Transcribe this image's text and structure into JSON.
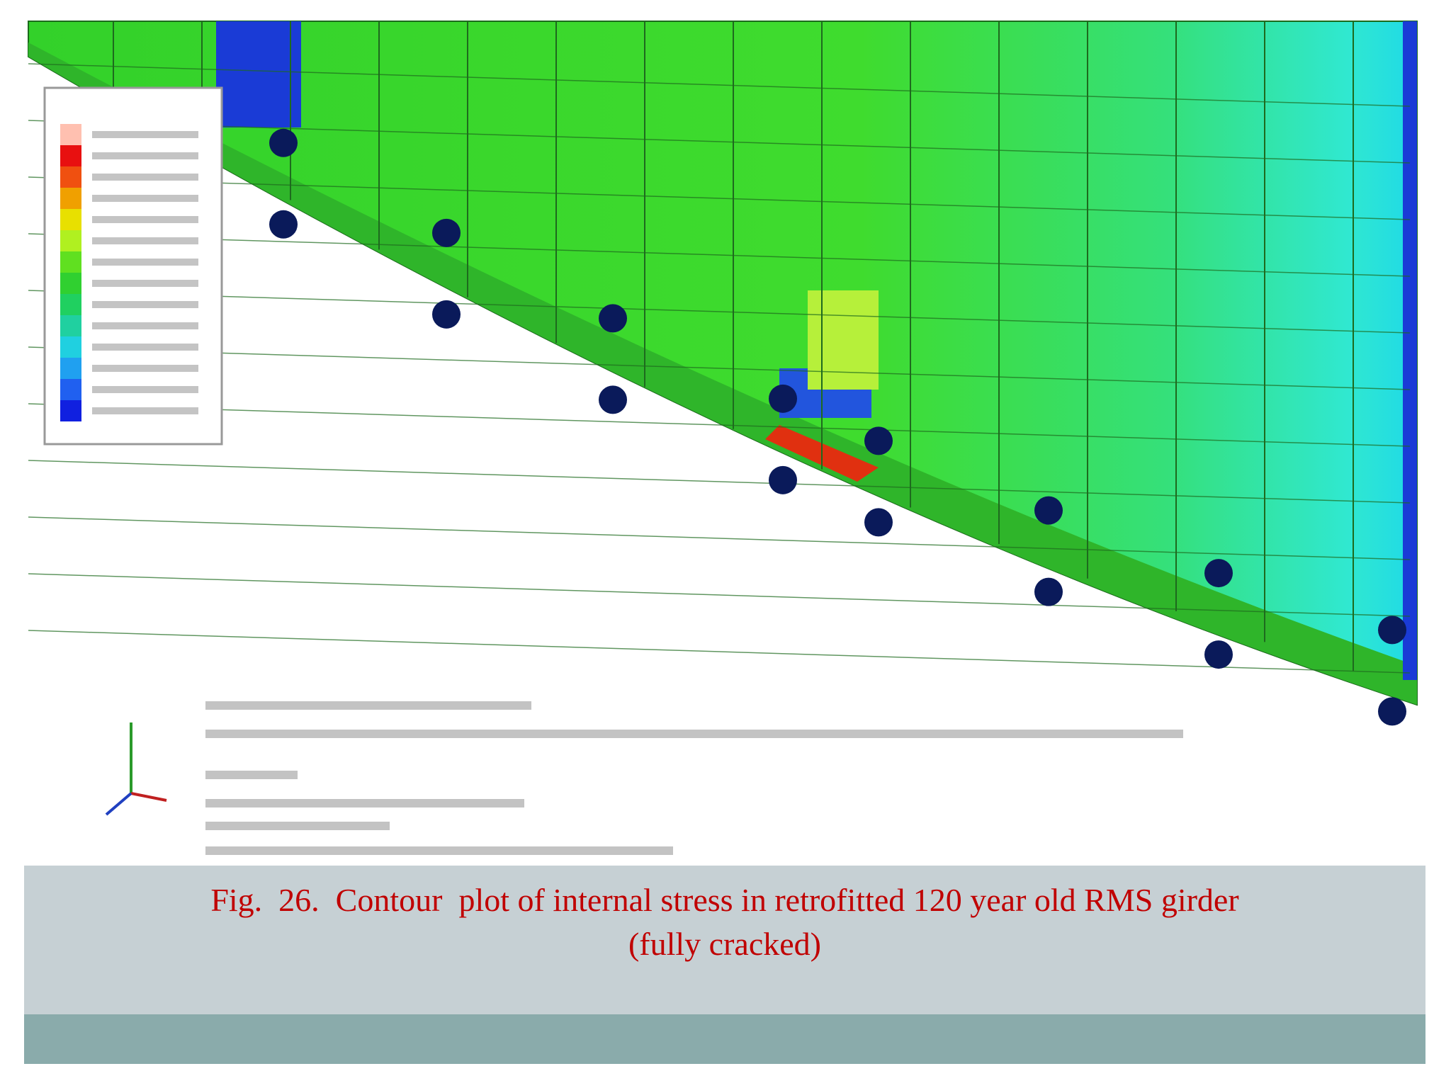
{
  "caption": {
    "line1": "Fig.  26.  Contour  plot of internal stress in retrofitted 120 year old RMS girder",
    "line2": "(fully cracked)"
  }
}
